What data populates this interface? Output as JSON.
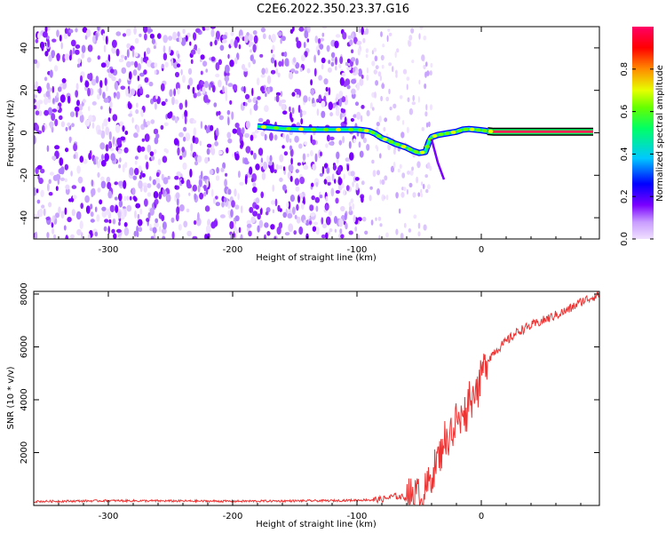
{
  "title": "C2E6.2022.350.23.37.G16",
  "colors": {
    "colormap": [
      "#ffffff",
      "#e6cfff",
      "#b28cff",
      "#7a00ff",
      "#0000ff",
      "#00c8ff",
      "#00ff66",
      "#c8ff00",
      "#ff8c00",
      "#ff0000",
      "#ff0066"
    ],
    "snr_line": "#ee3333",
    "frame": "#000000"
  },
  "chart_data": [
    {
      "type": "heatmap",
      "xlabel": "Height of straight line (km)",
      "ylabel": "Frequency (Hz)",
      "xlim": [
        -360,
        95
      ],
      "ylim": [
        -50,
        50
      ],
      "xticks": [
        -300,
        -200,
        -100,
        0
      ],
      "yticks": [
        -40,
        -20,
        0,
        20,
        40
      ],
      "noise_region_x": [
        -360,
        -95
      ],
      "sparse_noise_x": [
        -95,
        -40
      ],
      "track": {
        "x": [
          -180,
          -170,
          -160,
          -150,
          -140,
          -130,
          -120,
          -110,
          -100,
          -95,
          -90,
          -85,
          -80,
          -75,
          -70,
          -65,
          -60,
          -55,
          -50,
          -45,
          -42,
          -40,
          -35,
          -30,
          -25,
          -20,
          -15,
          -10,
          -5,
          0,
          5,
          10,
          15,
          20,
          30,
          40,
          50,
          60,
          70,
          80,
          90
        ],
        "y": [
          3,
          2.5,
          2,
          1.8,
          1.6,
          1.5,
          1.5,
          1.5,
          1.5,
          1.2,
          0.8,
          -0.5,
          -2.5,
          -3.5,
          -5,
          -6,
          -7,
          -8.5,
          -9.5,
          -9,
          -4,
          -2,
          -1,
          -0.5,
          0,
          0.5,
          1.5,
          1.8,
          1.5,
          1.2,
          0.8,
          0.5,
          0.5,
          0.5,
          0.5,
          0.5,
          0.5,
          0.5,
          0.5,
          0.5,
          0.5
        ]
      },
      "colorbar": {
        "label": "Normalized spectral amplitude",
        "range": [
          0,
          1
        ],
        "ticks": [
          "0.0",
          "0.2",
          "0.4",
          "0.6",
          "0.8"
        ],
        "tick_values": [
          0.0,
          0.2,
          0.4,
          0.6,
          0.8
        ]
      }
    },
    {
      "type": "line",
      "xlabel": "Height of straight line (km)",
      "ylabel": "SNR (10 * v/v)",
      "xlim": [
        -360,
        95
      ],
      "ylim": [
        0,
        8100
      ],
      "xticks": [
        -300,
        -200,
        -100,
        0
      ],
      "yticks": [
        2000,
        4000,
        6000,
        8000
      ],
      "series": [
        {
          "x": [
            -360,
            -300,
            -200,
            -120,
            -100,
            -80,
            -70,
            -60,
            -55,
            -50,
            -45,
            -40,
            -35,
            -32,
            -30,
            -27,
            -25,
            -22,
            -20,
            -17,
            -15,
            -12,
            -10,
            -7,
            -5,
            -2,
            0,
            5,
            10,
            15,
            20,
            25,
            30,
            40,
            50,
            60,
            70,
            80,
            90,
            95
          ],
          "y": [
            150,
            180,
            160,
            180,
            200,
            230,
            350,
            300,
            450,
            380,
            550,
            1100,
            1800,
            2000,
            2700,
            2200,
            3200,
            2400,
            3600,
            2900,
            3900,
            3300,
            4300,
            3900,
            4700,
            4300,
            5000,
            5500,
            5800,
            6000,
            6200,
            6400,
            6600,
            6800,
            7000,
            7200,
            7400,
            7700,
            7900,
            8000
          ]
        }
      ]
    }
  ]
}
